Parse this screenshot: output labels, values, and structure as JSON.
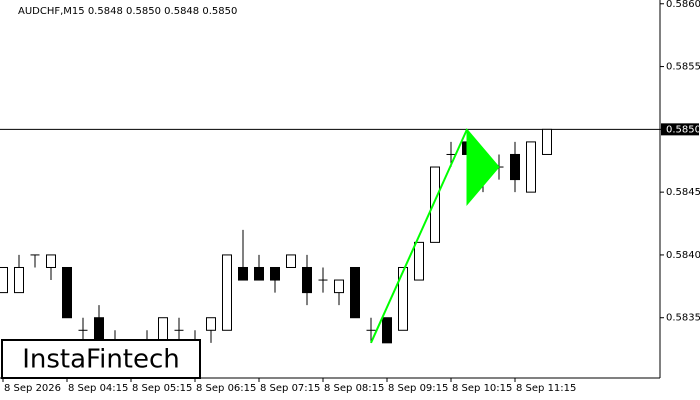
{
  "chart_data": {
    "type": "candlestick",
    "title": "AUDCHF,M15  0.5848 0.5850 0.5848 0.5850",
    "categories": [
      "8 Sep 2026",
      null,
      null,
      null,
      "8 Sep 04:15",
      null,
      null,
      null,
      "8 Sep 05:15",
      null,
      null,
      null,
      "8 Sep 06:15",
      null,
      null,
      null,
      "8 Sep 07:15",
      null,
      null,
      null,
      "8 Sep 08:15",
      null,
      null,
      null,
      "8 Sep 09:15",
      null,
      null,
      null,
      "8 Sep 10:15",
      null,
      null,
      null,
      "8 Sep 11:15",
      null,
      null
    ],
    "open": [
      0.5837,
      0.5837,
      0.584,
      0.5839,
      0.5839,
      0.5834,
      0.5835,
      0.5833,
      0.5832,
      0.5833,
      0.5833,
      0.5834,
      0.5833,
      0.5834,
      0.5834,
      0.5839,
      0.5839,
      0.5839,
      0.5839,
      0.5839,
      0.5838,
      0.5837,
      0.5839,
      0.5834,
      0.5835,
      0.5834,
      0.5838,
      0.5841,
      0.5848,
      0.5849,
      0.5847,
      0.5847,
      0.5848,
      0.5845,
      0.5848
    ],
    "high": [
      0.5839,
      0.584,
      0.584,
      0.584,
      0.5839,
      0.5835,
      0.5836,
      0.5834,
      0.5833,
      0.5834,
      0.5835,
      0.5835,
      0.5834,
      0.5835,
      0.584,
      0.5842,
      0.584,
      0.5839,
      0.584,
      0.584,
      0.5839,
      0.5838,
      0.5839,
      0.5835,
      0.5835,
      0.5839,
      0.5841,
      0.5847,
      0.5849,
      0.585,
      0.5848,
      0.5848,
      0.5849,
      0.5849,
      0.585
    ],
    "low": [
      0.5837,
      0.5837,
      0.5839,
      0.5838,
      0.5835,
      0.5833,
      0.5832,
      0.5832,
      0.5831,
      0.5832,
      0.5832,
      0.5833,
      0.5832,
      0.5833,
      0.5834,
      0.5838,
      0.5838,
      0.5837,
      0.5839,
      0.5836,
      0.5837,
      0.5836,
      0.5835,
      0.5833,
      0.5833,
      0.5834,
      0.5838,
      0.5841,
      0.5847,
      0.5847,
      0.5845,
      0.5846,
      0.5845,
      0.5845,
      0.5848
    ],
    "close": [
      0.5839,
      0.5839,
      0.584,
      0.584,
      0.5835,
      0.5834,
      0.5833,
      0.5833,
      0.5832,
      0.5833,
      0.5835,
      0.5834,
      0.5833,
      0.5835,
      0.584,
      0.5838,
      0.5838,
      0.5838,
      0.584,
      0.5837,
      0.5838,
      0.5838,
      0.5835,
      0.5834,
      0.5833,
      0.5839,
      0.5841,
      0.5847,
      0.5848,
      0.5848,
      0.5846,
      0.5847,
      0.5846,
      0.5849,
      0.585
    ],
    "ylim": [
      0.58302,
      0.58603
    ],
    "yticks": [
      {
        "value": 0.586,
        "label": "0.5860"
      },
      0.5855,
      {
        "value": 0.585,
        "label": "0.5850"
      },
      0.5845,
      {
        "value": 0.584,
        "label": "0.5840"
      },
      0.5835
    ],
    "last_price": {
      "value": 0.585,
      "label": "0.5850"
    },
    "pattern": {
      "color": "#00ff00",
      "pole": {
        "x": [
          23,
          29
        ],
        "y": [
          0.5833,
          0.585
        ]
      },
      "pennant": {
        "x": [
          29,
          29,
          31
        ],
        "y": [
          0.585,
          0.5844,
          0.5847
        ]
      }
    },
    "logo": "InstaFintech"
  }
}
